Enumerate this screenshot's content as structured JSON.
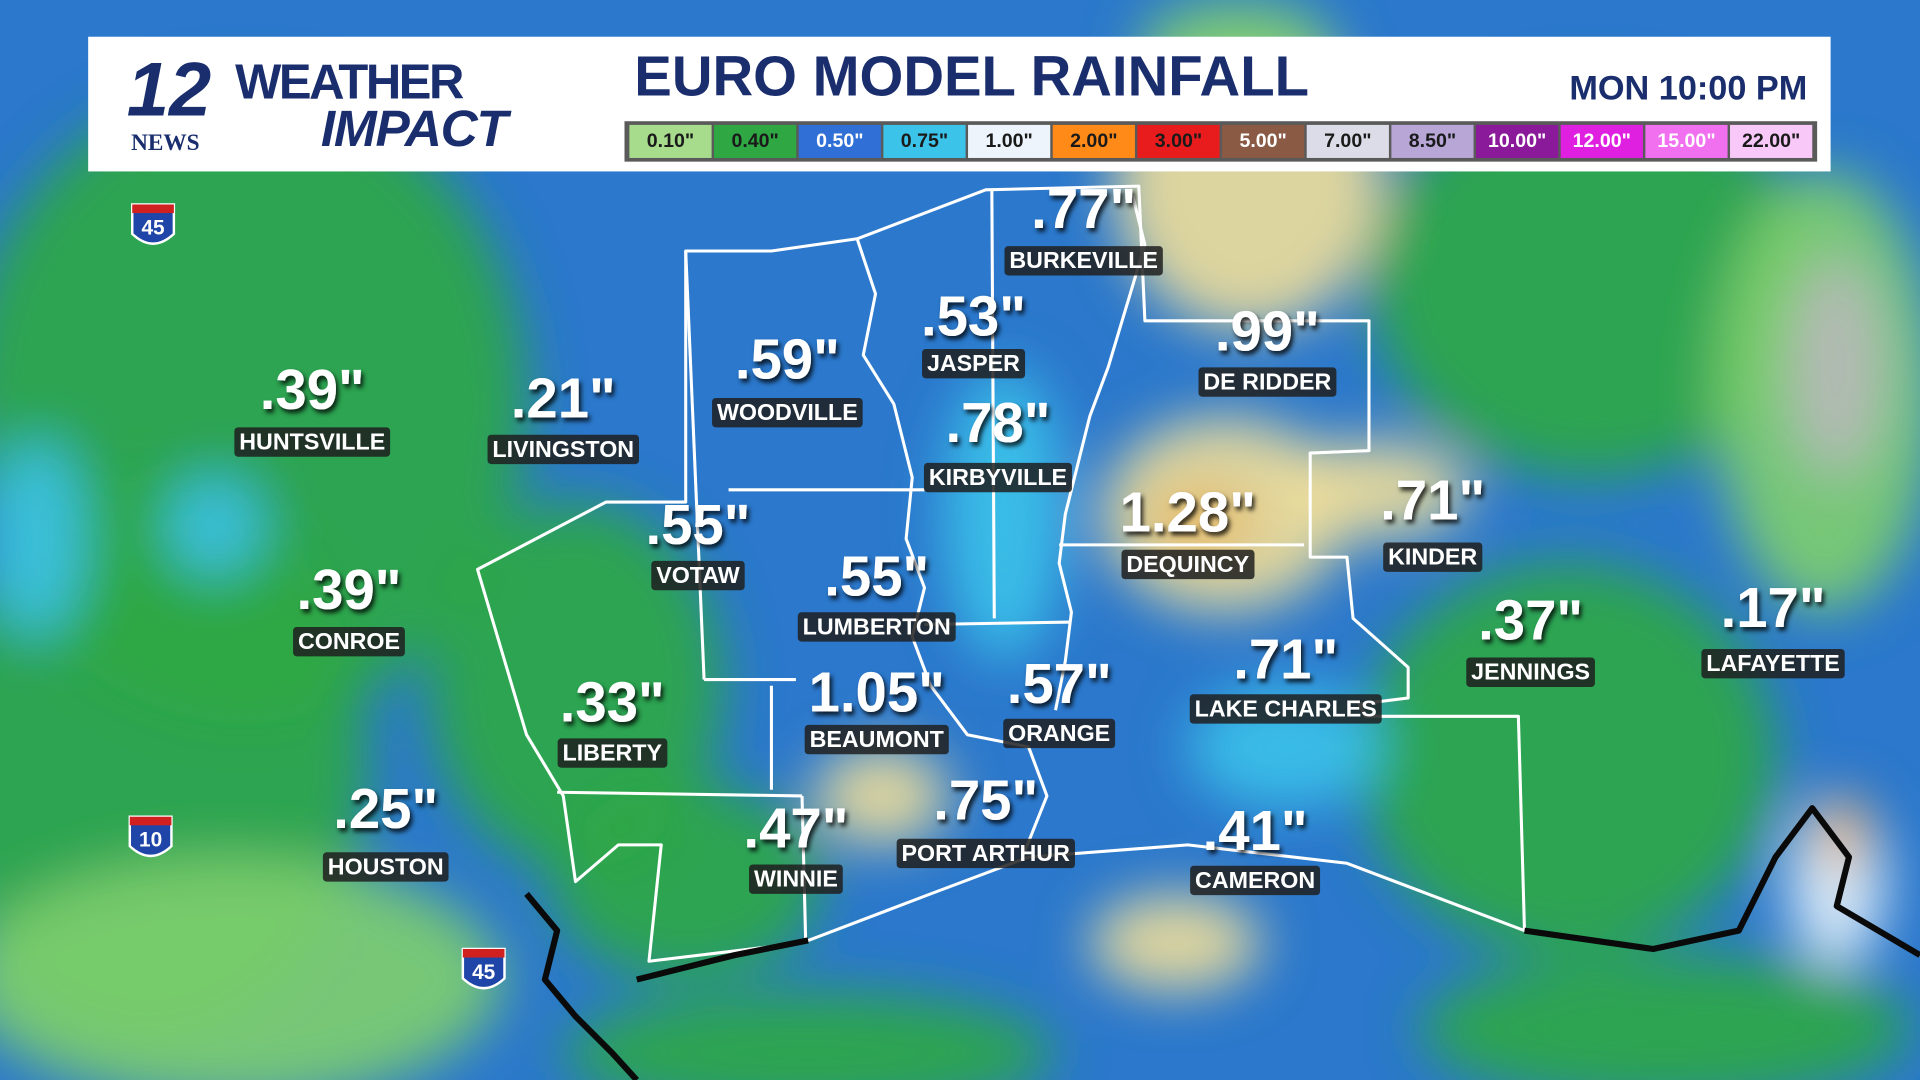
{
  "logo": {
    "number": "12",
    "news": "NEWS",
    "line1": "WEATHER",
    "line2": "IMPACT"
  },
  "header": {
    "title": "EURO MODEL RAINFALL",
    "time": "MON 10:00 PM"
  },
  "legend": [
    {
      "label": "0.10\"",
      "color": "#a6dc8c",
      "text_color": "#1a1a1a"
    },
    {
      "label": "0.40\"",
      "color": "#2fa843",
      "text_color": "#1a1a1a"
    },
    {
      "label": "0.50\"",
      "color": "#2f6fd6",
      "text_color": "#ffffff"
    },
    {
      "label": "0.75\"",
      "color": "#3cc3ea",
      "text_color": "#1a1a1a"
    },
    {
      "label": "1.00\"",
      "color": "#eef4fb",
      "text_color": "#1a1a1a"
    },
    {
      "label": "2.00\"",
      "color": "#ff8a18",
      "text_color": "#1a1a1a"
    },
    {
      "label": "3.00\"",
      "color": "#e81c1c",
      "text_color": "#1a1a1a"
    },
    {
      "label": "5.00\"",
      "color": "#8a5a44",
      "text_color": "#ffffff"
    },
    {
      "label": "7.00\"",
      "color": "#dcdce8",
      "text_color": "#1a1a1a"
    },
    {
      "label": "8.50\"",
      "color": "#b7a6d6",
      "text_color": "#1a1a1a"
    },
    {
      "label": "10.00\"",
      "color": "#8a1a9a",
      "text_color": "#ffffff"
    },
    {
      "label": "12.00\"",
      "color": "#e020e0",
      "text_color": "#ffffff"
    },
    {
      "label": "15.00\"",
      "color": "#f070f0",
      "text_color": "#ffffff"
    },
    {
      "label": "22.00\"",
      "color": "#f8c8f8",
      "text_color": "#1a1a1a"
    }
  ],
  "highways": [
    "45",
    "10",
    "45"
  ],
  "locations": [
    {
      "value": ".77\"",
      "name": "BURKEVILLE"
    },
    {
      "value": ".53\"",
      "name": "JASPER"
    },
    {
      "value": ".99\"",
      "name": "DE RIDDER"
    },
    {
      "value": ".59\"",
      "name": "WOODVILLE"
    },
    {
      "value": ".39\"",
      "name": "HUNTSVILLE"
    },
    {
      "value": ".21\"",
      "name": "LIVINGSTON"
    },
    {
      "value": ".78\"",
      "name": "KIRBYVILLE"
    },
    {
      "value": ".55\"",
      "name": "VOTAW"
    },
    {
      "value": "1.28\"",
      "name": "DEQUINCY"
    },
    {
      "value": ".71\"",
      "name": "KINDER"
    },
    {
      "value": ".39\"",
      "name": "CONROE"
    },
    {
      "value": ".55\"",
      "name": "LUMBERTON"
    },
    {
      "value": ".37\"",
      "name": "JENNINGS"
    },
    {
      "value": ".17\"",
      "name": "LAFAYETTE"
    },
    {
      "value": ".71\"",
      "name": "LAKE CHARLES"
    },
    {
      "value": "1.05\"",
      "name": "BEAUMONT"
    },
    {
      "value": ".57\"",
      "name": "ORANGE"
    },
    {
      "value": ".33\"",
      "name": "LIBERTY"
    },
    {
      "value": ".25\"",
      "name": "HOUSTON"
    },
    {
      "value": ".47\"",
      "name": "WINNIE"
    },
    {
      "value": ".75\"",
      "name": "PORT ARTHUR"
    },
    {
      "value": ".41\"",
      "name": "CAMERON"
    }
  ]
}
